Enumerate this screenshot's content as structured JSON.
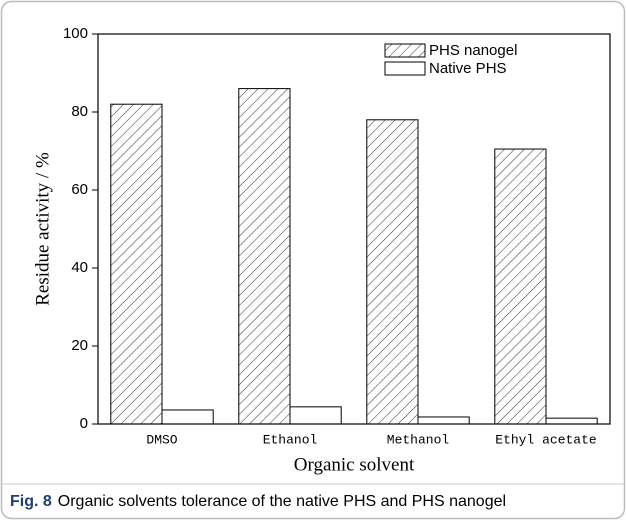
{
  "chart_data": {
    "type": "bar",
    "x_label": "Organic solvent",
    "y_label": "Residue activity / %",
    "categories": [
      "DMSO",
      "Ethanol",
      "Methanol",
      "Ethyl acetate"
    ],
    "series": [
      {
        "name": "PHS nanogel",
        "color": "#000000",
        "hatch": true,
        "values": [
          82,
          86,
          78,
          70.5
        ]
      },
      {
        "name": "Native PHS",
        "color": "#000000",
        "hatch": false,
        "values": [
          3.6,
          4.4,
          1.8,
          1.5
        ]
      }
    ],
    "ylim": [
      0,
      100
    ],
    "yticks": [
      0,
      20,
      40,
      60,
      80,
      100
    ],
    "legend": "upper right"
  },
  "caption": {
    "label": "Fig. 8",
    "text": "Organic solvents tolerance of the native PHS and PHS nanogel"
  }
}
